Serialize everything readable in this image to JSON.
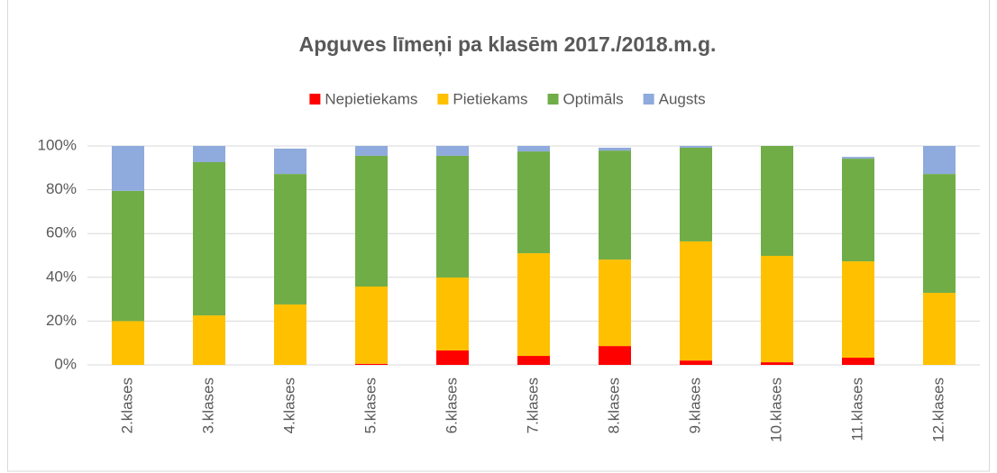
{
  "chart_data": {
    "type": "stacked-bar",
    "title": "Apguves līmeņi pa klasēm 2017./2018.m.g.",
    "categories": [
      "2.klases",
      "3.klases",
      "4.klases",
      "5.klases",
      "6.klases",
      "7.klases",
      "8.klases",
      "9.klases",
      "10.klases",
      "11.klases",
      "12.klases"
    ],
    "series": [
      {
        "name": "Nepietiekams",
        "color": "#ff0000",
        "values": [
          0,
          0,
          0,
          0.5,
          6.6,
          4.1,
          8.6,
          2,
          1.2,
          3.3,
          0
        ]
      },
      {
        "name": "Pietiekams",
        "color": "#ffc000",
        "values": [
          20,
          22.6,
          27.6,
          35.3,
          33.3,
          46.9,
          39.5,
          54.4,
          48.6,
          44,
          32.9
        ]
      },
      {
        "name": "Optimāls",
        "color": "#70ad47",
        "values": [
          59.5,
          70,
          59.6,
          59.7,
          55.6,
          46.5,
          49.8,
          42.8,
          50.2,
          46.9,
          54.3
        ]
      },
      {
        "name": "Augsts",
        "color": "#8faadc",
        "values": [
          20.5,
          7.4,
          11.6,
          4.5,
          4.5,
          2.5,
          1.3,
          0.8,
          0,
          0.8,
          12.8
        ]
      }
    ],
    "ylim": [
      0,
      100
    ],
    "yticks": [
      {
        "value": 0,
        "label": "0%"
      },
      {
        "value": 20,
        "label": "20%"
      },
      {
        "value": 40,
        "label": "40%"
      },
      {
        "value": 60,
        "label": "60%"
      },
      {
        "value": 80,
        "label": "80%"
      },
      {
        "value": 100,
        "label": "100%"
      }
    ],
    "grid": true,
    "legend": "top"
  }
}
